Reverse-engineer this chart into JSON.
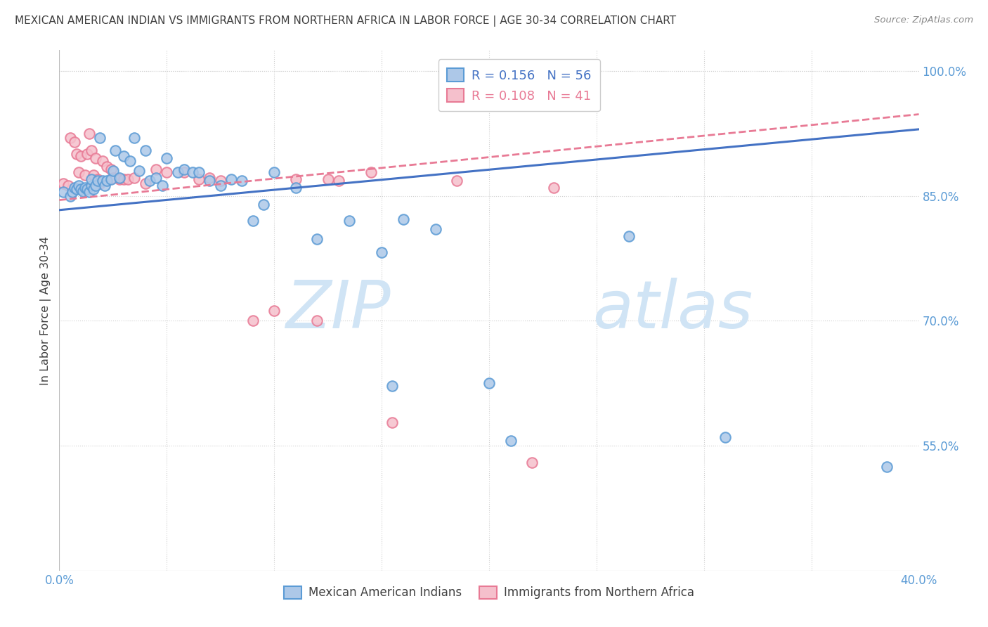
{
  "title": "MEXICAN AMERICAN INDIAN VS IMMIGRANTS FROM NORTHERN AFRICA IN LABOR FORCE | AGE 30-34 CORRELATION CHART",
  "source": "Source: ZipAtlas.com",
  "ylabel": "In Labor Force | Age 30-34",
  "xlim": [
    0.0,
    0.4
  ],
  "ylim": [
    0.4,
    1.025
  ],
  "yticks": [
    0.55,
    0.7,
    0.85,
    1.0
  ],
  "yticklabels": [
    "55.0%",
    "70.0%",
    "85.0%",
    "100.0%"
  ],
  "legend_blue_r": "R = 0.156",
  "legend_blue_n": "N = 56",
  "legend_pink_r": "R = 0.108",
  "legend_pink_n": "N = 41",
  "blue_color": "#adc8e8",
  "pink_color": "#f5c0cc",
  "blue_edge_color": "#5b9bd5",
  "pink_edge_color": "#e87a95",
  "blue_line_color": "#4472c4",
  "pink_line_color": "#e87a95",
  "title_color": "#404040",
  "axis_label_color": "#5b9bd5",
  "watermark_zip_color": "#d0e4f5",
  "watermark_atlas_color": "#d0e4f5",
  "background_color": "#ffffff",
  "grid_color": "#d0d0d0",
  "blue_x": [
    0.002,
    0.005,
    0.006,
    0.007,
    0.008,
    0.009,
    0.01,
    0.011,
    0.012,
    0.013,
    0.014,
    0.015,
    0.015,
    0.016,
    0.017,
    0.018,
    0.019,
    0.02,
    0.021,
    0.022,
    0.024,
    0.025,
    0.026,
    0.028,
    0.03,
    0.033,
    0.035,
    0.037,
    0.04,
    0.042,
    0.045,
    0.048,
    0.05,
    0.055,
    0.058,
    0.062,
    0.065,
    0.07,
    0.075,
    0.08,
    0.085,
    0.09,
    0.095,
    0.1,
    0.11,
    0.12,
    0.135,
    0.15,
    0.155,
    0.16,
    0.175,
    0.2,
    0.21,
    0.265,
    0.31,
    0.385
  ],
  "blue_y": [
    0.855,
    0.85,
    0.855,
    0.86,
    0.858,
    0.862,
    0.858,
    0.856,
    0.86,
    0.858,
    0.855,
    0.862,
    0.87,
    0.858,
    0.862,
    0.868,
    0.92,
    0.868,
    0.862,
    0.868,
    0.87,
    0.88,
    0.905,
    0.872,
    0.898,
    0.892,
    0.92,
    0.88,
    0.905,
    0.868,
    0.872,
    0.862,
    0.895,
    0.878,
    0.882,
    0.878,
    0.878,
    0.868,
    0.862,
    0.87,
    0.868,
    0.82,
    0.84,
    0.878,
    0.86,
    0.798,
    0.82,
    0.782,
    0.622,
    0.822,
    0.81,
    0.625,
    0.556,
    0.802,
    0.56,
    0.525
  ],
  "pink_x": [
    0.002,
    0.004,
    0.005,
    0.007,
    0.008,
    0.009,
    0.01,
    0.012,
    0.013,
    0.014,
    0.015,
    0.016,
    0.017,
    0.018,
    0.019,
    0.02,
    0.022,
    0.024,
    0.025,
    0.028,
    0.03,
    0.032,
    0.035,
    0.04,
    0.045,
    0.05,
    0.058,
    0.065,
    0.07,
    0.075,
    0.09,
    0.1,
    0.11,
    0.12,
    0.125,
    0.13,
    0.145,
    0.155,
    0.185,
    0.22,
    0.23
  ],
  "pink_y": [
    0.865,
    0.862,
    0.92,
    0.915,
    0.9,
    0.878,
    0.898,
    0.875,
    0.9,
    0.925,
    0.905,
    0.875,
    0.895,
    0.87,
    0.865,
    0.892,
    0.885,
    0.882,
    0.872,
    0.87,
    0.87,
    0.87,
    0.872,
    0.865,
    0.882,
    0.878,
    0.878,
    0.87,
    0.872,
    0.868,
    0.7,
    0.712,
    0.87,
    0.7,
    0.87,
    0.868,
    0.878,
    0.578,
    0.868,
    0.53,
    0.86
  ],
  "marker_size": 110,
  "marker_linewidth": 1.5,
  "blue_trend": [
    0.0,
    0.4,
    0.833,
    0.93
  ],
  "pink_trend": [
    0.0,
    0.4,
    0.845,
    0.948
  ]
}
